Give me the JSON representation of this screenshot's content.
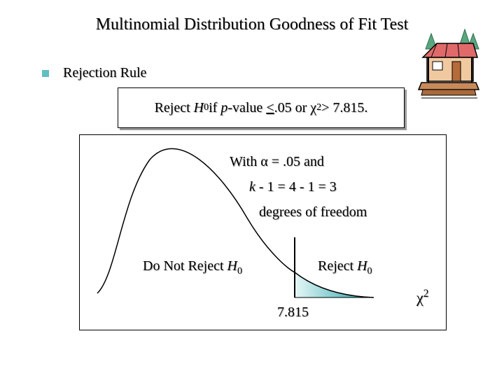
{
  "title": "Multinomial Distribution Goodness of Fit Test",
  "bullet": {
    "text": "Rejection Rule"
  },
  "rule": {
    "reject": "Reject ",
    "h": "H",
    "h_sub": "0",
    "if": " if ",
    "p": "p",
    "value": "-value ",
    "le": "<",
    "mid": " .05 or ",
    "chi": "χ",
    "sup": "2",
    "end": " > 7.815."
  },
  "chart": {
    "with_line1_a": "With ",
    "alpha": "α",
    "with_line1_b": " = .05 and",
    "k": "k",
    "with_line2": " - 1 = 4 - 1 = 3",
    "with_line3": "degrees of freedom",
    "dnr_text": "Do Not Reject ",
    "reject_text": "Reject ",
    "h": "H",
    "h_sub": "0",
    "critical_value": "7.815",
    "axis_label": "χ",
    "axis_sup": "2"
  },
  "colors": {
    "tail_fill_light": "#e8f7f7",
    "tail_fill_dark": "#1aa1a8",
    "bullet": "#5fbfbf"
  },
  "icon": "cabin-clipart-icon"
}
